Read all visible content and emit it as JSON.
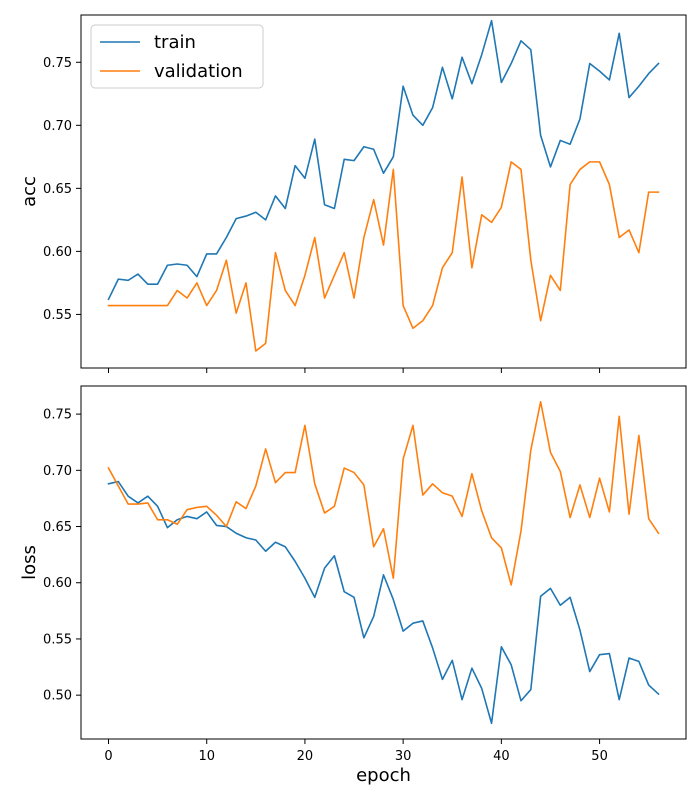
{
  "chart_data": [
    {
      "type": "line",
      "ylabel": "acc",
      "xlabel": "",
      "xlim": [
        -2.8,
        58.8
      ],
      "ylim": [
        0.5075,
        0.7875
      ],
      "x_ticks": [
        0,
        10,
        20,
        30,
        40,
        50
      ],
      "x_tick_labels_visible": false,
      "y_ticks": [
        0.55,
        0.6,
        0.65,
        0.7,
        0.75
      ],
      "y_tick_labels": [
        "0.55",
        "0.60",
        "0.65",
        "0.70",
        "0.75"
      ],
      "grid": false,
      "legend": {
        "placement": "top-left",
        "entries": [
          "train",
          "validation"
        ]
      },
      "series": [
        {
          "name": "train",
          "color": "#1f77b4",
          "values": [
            0.562,
            0.578,
            0.577,
            0.582,
            0.574,
            0.574,
            0.589,
            0.59,
            0.589,
            0.58,
            0.598,
            0.598,
            0.611,
            0.626,
            0.628,
            0.631,
            0.625,
            0.644,
            0.634,
            0.668,
            0.658,
            0.689,
            0.637,
            0.634,
            0.673,
            0.672,
            0.683,
            0.681,
            0.662,
            0.675,
            0.731,
            0.708,
            0.7,
            0.714,
            0.746,
            0.721,
            0.754,
            0.733,
            0.756,
            0.783,
            0.734,
            0.749,
            0.767,
            0.76,
            0.692,
            0.667,
            0.688,
            0.685,
            0.705,
            0.749,
            0.743,
            0.736,
            0.773,
            0.722,
            0.731,
            0.741,
            0.749
          ]
        },
        {
          "name": "validation",
          "color": "#ff7f0e",
          "values": [
            0.557,
            0.557,
            0.557,
            0.557,
            0.557,
            0.557,
            0.557,
            0.569,
            0.563,
            0.575,
            0.557,
            0.569,
            0.593,
            0.551,
            0.575,
            0.521,
            0.527,
            0.599,
            0.569,
            0.557,
            0.581,
            0.611,
            0.563,
            0.581,
            0.599,
            0.563,
            0.611,
            0.641,
            0.605,
            0.665,
            0.557,
            0.539,
            0.545,
            0.557,
            0.587,
            0.599,
            0.659,
            0.587,
            0.629,
            0.623,
            0.635,
            0.671,
            0.665,
            0.593,
            0.545,
            0.581,
            0.569,
            0.653,
            0.665,
            0.671,
            0.671,
            0.653,
            0.611,
            0.617,
            0.599,
            0.647,
            0.647
          ]
        }
      ]
    },
    {
      "type": "line",
      "ylabel": "loss",
      "xlabel": "epoch",
      "xlim": [
        -2.8,
        58.8
      ],
      "ylim": [
        0.461,
        0.775
      ],
      "x_ticks": [
        0,
        10,
        20,
        30,
        40,
        50
      ],
      "x_tick_labels": [
        "0",
        "10",
        "20",
        "30",
        "40",
        "50"
      ],
      "y_ticks": [
        0.5,
        0.55,
        0.6,
        0.65,
        0.7,
        0.75
      ],
      "y_tick_labels": [
        "0.50",
        "0.55",
        "0.60",
        "0.65",
        "0.70",
        "0.75"
      ],
      "grid": false,
      "series": [
        {
          "name": "train",
          "color": "#1f77b4",
          "values": [
            0.688,
            0.69,
            0.677,
            0.671,
            0.677,
            0.668,
            0.649,
            0.656,
            0.659,
            0.657,
            0.663,
            0.651,
            0.65,
            0.644,
            0.64,
            0.638,
            0.628,
            0.636,
            0.632,
            0.619,
            0.604,
            0.587,
            0.613,
            0.624,
            0.592,
            0.587,
            0.551,
            0.57,
            0.607,
            0.585,
            0.557,
            0.564,
            0.566,
            0.542,
            0.514,
            0.531,
            0.496,
            0.524,
            0.506,
            0.475,
            0.543,
            0.527,
            0.495,
            0.505,
            0.588,
            0.595,
            0.58,
            0.587,
            0.558,
            0.521,
            0.536,
            0.537,
            0.496,
            0.533,
            0.53,
            0.509,
            0.501
          ]
        },
        {
          "name": "validation",
          "color": "#ff7f0e",
          "values": [
            0.702,
            0.686,
            0.67,
            0.67,
            0.671,
            0.656,
            0.656,
            0.652,
            0.665,
            0.667,
            0.668,
            0.66,
            0.65,
            0.672,
            0.666,
            0.686,
            0.719,
            0.689,
            0.698,
            0.698,
            0.74,
            0.688,
            0.662,
            0.668,
            0.702,
            0.698,
            0.687,
            0.632,
            0.648,
            0.604,
            0.71,
            0.74,
            0.678,
            0.688,
            0.68,
            0.677,
            0.659,
            0.697,
            0.664,
            0.64,
            0.631,
            0.598,
            0.646,
            0.718,
            0.761,
            0.716,
            0.699,
            0.658,
            0.687,
            0.658,
            0.693,
            0.663,
            0.748,
            0.661,
            0.731,
            0.657,
            0.644
          ]
        }
      ]
    }
  ]
}
